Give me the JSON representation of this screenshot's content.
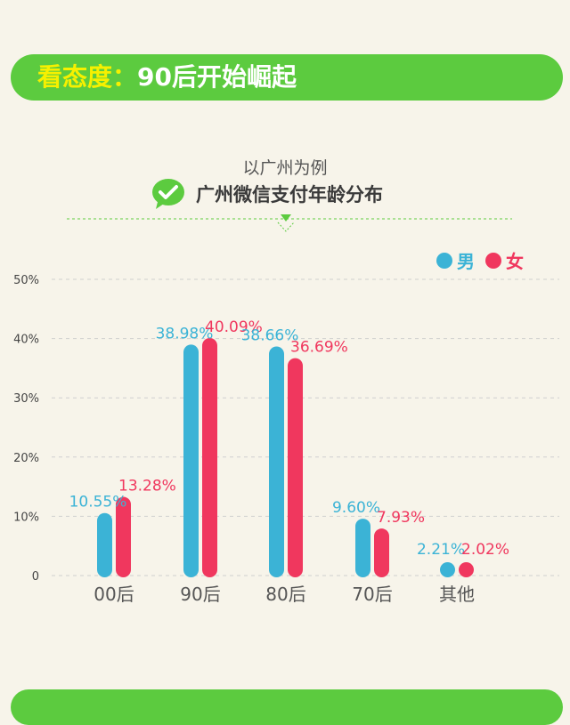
{
  "header": {
    "title_highlight": "看态度：",
    "title_rest": "90后开始崛起"
  },
  "subtitle": "以广州为例",
  "chart_title": "广州微信支付年龄分布",
  "colors": {
    "male": "#3bb3d6",
    "female": "#f0375e",
    "banner": "#5ccb3f",
    "highlight": "#f6f000"
  },
  "icons": {
    "title": "wechat-icon",
    "divider": "triangle-down-icon"
  },
  "chart_data": {
    "type": "bar",
    "title": "广州微信支付年龄分布",
    "categories": [
      "00后",
      "90后",
      "80后",
      "70后",
      "其他"
    ],
    "series": [
      {
        "name": "男",
        "values": [
          10.55,
          38.98,
          38.66,
          9.6,
          2.21
        ],
        "labels": [
          "10.55%",
          "38.98%",
          "38.66%",
          "9.60%",
          "2.21%"
        ]
      },
      {
        "name": "女",
        "values": [
          13.28,
          40.09,
          36.69,
          7.93,
          2.02
        ],
        "labels": [
          "13.28%",
          "40.09%",
          "36.69%",
          "7.93%",
          "2.02%"
        ]
      }
    ],
    "yticks": [
      0,
      10,
      20,
      30,
      40,
      50
    ],
    "ytick_labels": [
      "0",
      "10%",
      "20%",
      "30%",
      "40%",
      "50%"
    ],
    "ylim": [
      0,
      50
    ],
    "grid": true,
    "legend_position": "top-right"
  }
}
